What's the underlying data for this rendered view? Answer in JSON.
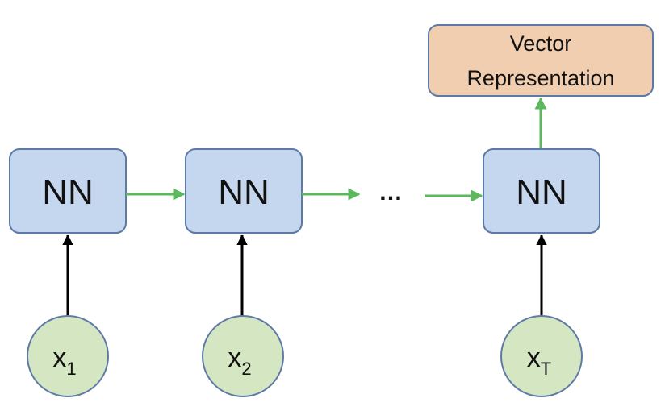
{
  "colors": {
    "nn_fill": "#c5d7ee",
    "nn_stroke": "#5b7aa8",
    "output_fill": "#f2ceb0",
    "output_stroke": "#5b7aa8",
    "input_fill": "#d5e6c2",
    "input_stroke": "#5e7aa7",
    "recurrent_arrow": "#5cb85c",
    "input_arrow": "#000000"
  },
  "nodes": {
    "nn1": {
      "label": "NN"
    },
    "nn2": {
      "label": "NN"
    },
    "nn3": {
      "label": "NN"
    },
    "ellipsis": "…",
    "output": {
      "line1": "Vector",
      "line2": "Representation"
    },
    "x1": {
      "base": "x",
      "sub": "1"
    },
    "x2": {
      "base": "x",
      "sub": "2"
    },
    "xT": {
      "base": "x",
      "sub": "T"
    }
  }
}
